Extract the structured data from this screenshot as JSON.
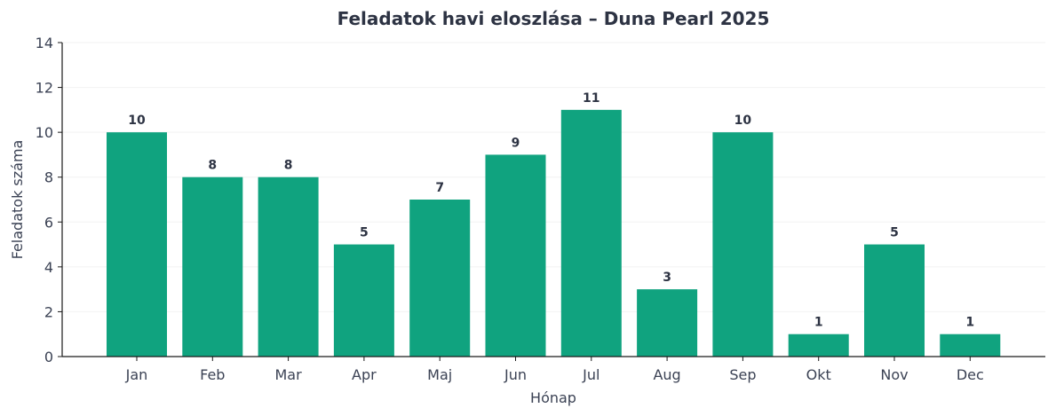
{
  "chart_data": {
    "type": "bar",
    "title": "Feladatok havi eloszlása – Duna Pearl 2025",
    "xlabel": "Hónap",
    "ylabel": "Feladatok száma",
    "categories": [
      "Jan",
      "Feb",
      "Mar",
      "Apr",
      "Maj",
      "Jun",
      "Jul",
      "Aug",
      "Sep",
      "Okt",
      "Nov",
      "Dec"
    ],
    "values": [
      10,
      8,
      8,
      5,
      7,
      9,
      11,
      3,
      10,
      1,
      5,
      1
    ],
    "ylim": [
      0,
      14
    ],
    "yticks": [
      0,
      2,
      4,
      6,
      8,
      10,
      12,
      14
    ],
    "grid": "horizontal",
    "data_labels": true,
    "bar_color": "#10a37f",
    "axis_color": "#1a1a1a",
    "text_color": "#3b4254"
  }
}
